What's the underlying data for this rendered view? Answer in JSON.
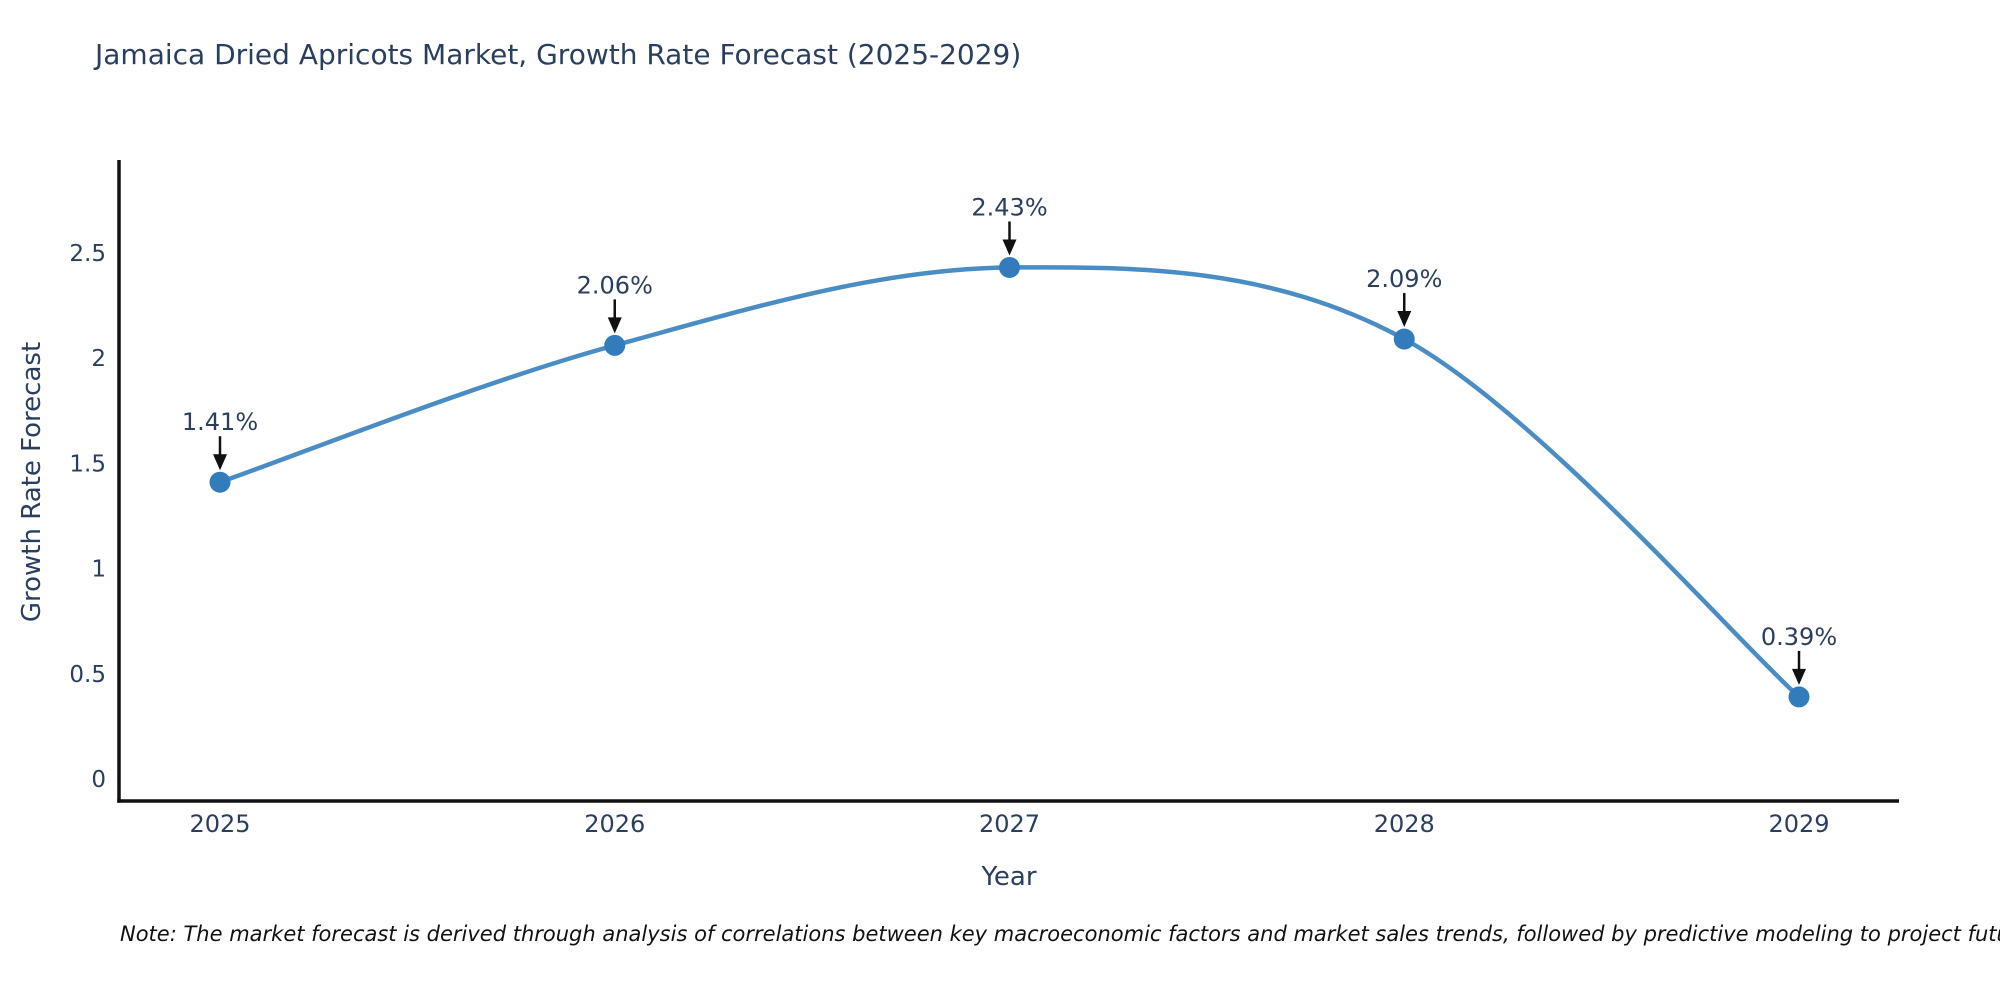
{
  "chart_data": {
    "type": "line",
    "title": "Jamaica Dried Apricots Market, Growth Rate Forecast (2025-2029)",
    "xlabel": "Year",
    "ylabel": "Growth Rate Forecast",
    "x": [
      2025,
      2026,
      2027,
      2028,
      2029
    ],
    "x_tick_labels": [
      "2025",
      "2026",
      "2027",
      "2028",
      "2029"
    ],
    "values": [
      1.41,
      2.06,
      2.43,
      2.09,
      0.39
    ],
    "point_labels": [
      "1.41%",
      "2.06%",
      "2.43%",
      "2.09%",
      "0.39%"
    ],
    "y_ticks": [
      0,
      0.5,
      1,
      1.5,
      2,
      2.5
    ],
    "y_tick_labels": [
      "0",
      "0.5",
      "1",
      "1.5",
      "2",
      "2.5"
    ],
    "ylim": [
      -0.13,
      2.94
    ],
    "grid": false,
    "legend": "none",
    "line_shape": "spline",
    "colors": {
      "line": "#4a8dc4",
      "marker": "#327cbb",
      "axis": "#111111",
      "text": "#2a3f5f",
      "arrow": "#111111"
    }
  },
  "note": {
    "text": "Note: The market forecast is derived through analysis of correlations between key macroeconomic factors and market sales trends, followed by predictive modeling to project future sales"
  }
}
